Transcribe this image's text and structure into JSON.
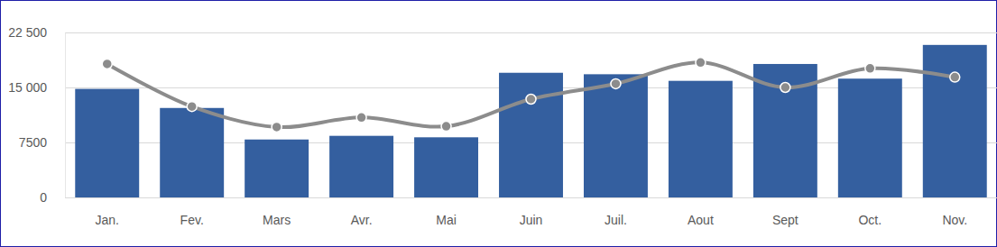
{
  "chart_data": {
    "type": "bar",
    "categories": [
      "Jan.",
      "Fev.",
      "Mars",
      "Avr.",
      "Mai",
      "Juin",
      "Juil.",
      "Aout",
      "Sept",
      "Oct.",
      "Nov."
    ],
    "series": [
      {
        "type": "bar",
        "color": "#345f9f",
        "values": [
          14800,
          12200,
          7900,
          8400,
          8200,
          17000,
          16800,
          15900,
          18200,
          16200,
          20800
        ]
      },
      {
        "type": "line",
        "color": "#8c8c8c",
        "marker": "circle",
        "line_style": "solid",
        "values": [
          18200,
          12400,
          9600,
          10900,
          9700,
          13400,
          15500,
          18400,
          15000,
          17600,
          16400
        ]
      }
    ],
    "ylim": [
      0,
      22500
    ],
    "yticks": [
      0,
      7500,
      {
        "value": 15000,
        "label": "15 000"
      },
      {
        "value": 22500,
        "label": "22 500"
      }
    ],
    "grid": true
  }
}
